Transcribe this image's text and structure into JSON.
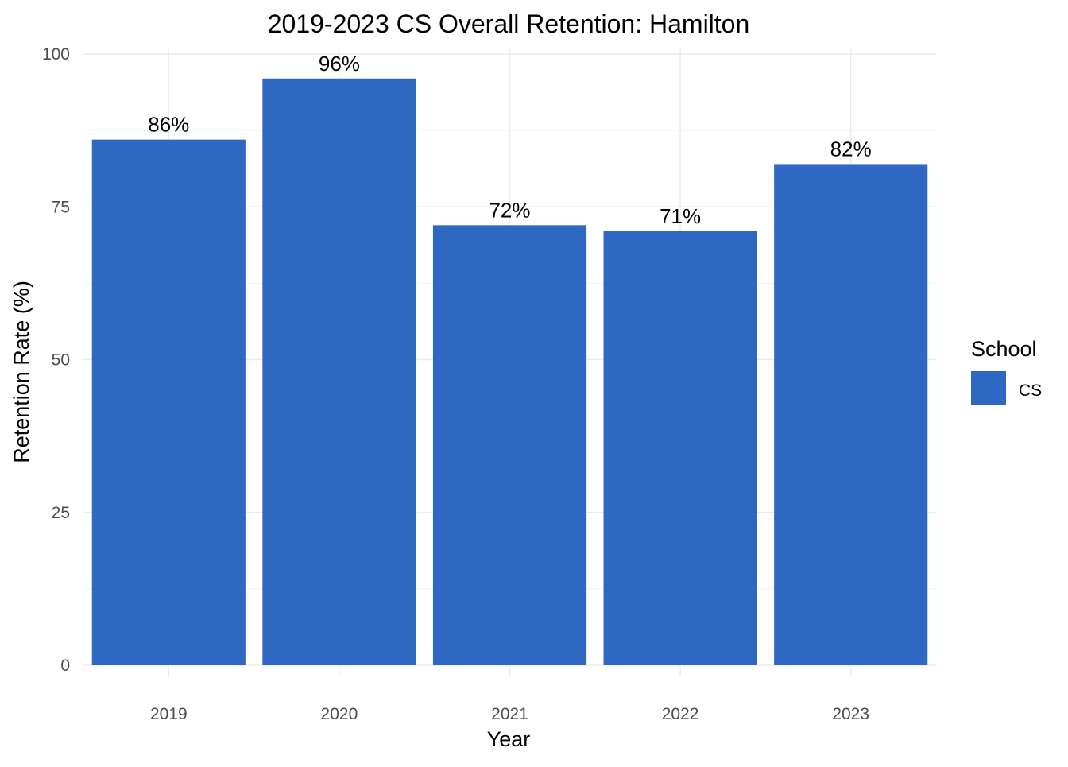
{
  "chart_data": {
    "type": "bar",
    "title": "2019-2023 CS Overall Retention: Hamilton",
    "xlabel": "Year",
    "ylabel": "Retention Rate (%)",
    "categories": [
      "2019",
      "2020",
      "2021",
      "2022",
      "2023"
    ],
    "series": [
      {
        "name": "CS",
        "values": [
          86,
          96,
          72,
          71,
          82
        ],
        "color": "#2E68C3"
      }
    ],
    "data_labels": [
      "86%",
      "96%",
      "72%",
      "71%",
      "82%"
    ],
    "yticks": [
      0,
      25,
      50,
      75,
      100
    ],
    "ytick_labels": [
      "0",
      "25",
      "50",
      "75",
      "100"
    ],
    "ylim": [
      0,
      100
    ],
    "grid": true,
    "legend": {
      "title": "School",
      "position": "right",
      "entries": [
        "CS"
      ]
    }
  }
}
